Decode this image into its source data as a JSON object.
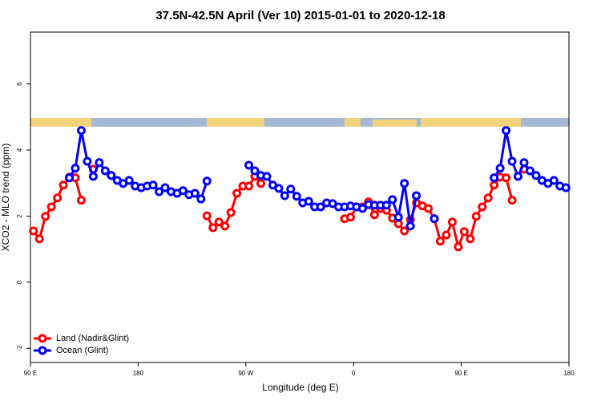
{
  "chart_data": {
    "type": "line",
    "title": "37.5N-42.5N April (Ver 10)   2015-01-01 to 2020-12-18",
    "x_label": "Longitude (deg E)",
    "y_label": "XCO2 - MLO trend (ppm)",
    "x": [
      92.5,
      97.5,
      102.5,
      107.5,
      112.5,
      117.5,
      122.5,
      127.5,
      132.5,
      137.5,
      142.5,
      147.5,
      152.5,
      157.5,
      162.5,
      167.5,
      172.5,
      177.5,
      182.5,
      187.5,
      192.5,
      197.5,
      202.5,
      207.5,
      212.5,
      217.5,
      222.5,
      227.5,
      232.5,
      237.5,
      242.5,
      247.5,
      252.5,
      257.5,
      262.5,
      267.5,
      272.5,
      277.5,
      282.5,
      287.5,
      292.5,
      297.5,
      302.5,
      307.5,
      312.5,
      317.5,
      322.5,
      327.5,
      332.5,
      337.5,
      342.5,
      347.5,
      352.5,
      357.5,
      362.5,
      367.5,
      372.5,
      377.5,
      382.5,
      387.5,
      392.5,
      397.5,
      402.5,
      407.5,
      412.5,
      417.5,
      422.5,
      427.5,
      432.5,
      437.5,
      442.5,
      447.5,
      452.5,
      457.5,
      462.5,
      467.5,
      472.5,
      477.5,
      482.5,
      487.5,
      492.5,
      497.5,
      502.5,
      507.5,
      512.5,
      517.5,
      522.5,
      527.5,
      532.5,
      537.5
    ],
    "series": [
      {
        "name": "Land (Nadir&Glint)",
        "color": "#ff0000",
        "values": [
          1.55,
          1.31,
          1.99,
          2.28,
          2.55,
          2.94,
          3.18,
          3.16,
          2.48,
          null,
          3.42,
          null,
          null,
          null,
          null,
          null,
          null,
          null,
          null,
          null,
          null,
          null,
          null,
          null,
          null,
          null,
          null,
          null,
          null,
          2.01,
          1.65,
          1.82,
          1.7,
          2.11,
          2.69,
          2.91,
          2.91,
          3.2,
          2.99,
          null,
          null,
          null,
          null,
          null,
          null,
          null,
          null,
          null,
          null,
          null,
          null,
          null,
          1.92,
          1.97,
          2.28,
          2.28,
          2.43,
          2.04,
          2.23,
          2.18,
          1.94,
          1.77,
          1.55,
          1.89,
          2.4,
          2.31,
          2.23,
          1.92,
          1.24,
          1.43,
          1.82,
          1.07,
          1.53,
          1.31,
          1.99,
          2.28,
          2.55,
          2.94,
          3.18,
          3.16,
          2.48,
          null,
          3.42,
          null,
          null,
          null,
          null,
          null,
          null,
          null
        ]
      },
      {
        "name": "Ocean (Glint)",
        "color": "#0000ff",
        "values": [
          null,
          null,
          null,
          null,
          null,
          null,
          3.16,
          3.45,
          4.59,
          3.66,
          3.2,
          3.62,
          3.37,
          3.23,
          3.08,
          2.99,
          3.08,
          2.91,
          2.86,
          2.91,
          2.94,
          2.74,
          2.86,
          2.74,
          2.69,
          2.77,
          2.65,
          2.69,
          2.52,
          3.06,
          null,
          null,
          null,
          null,
          null,
          null,
          3.54,
          3.37,
          3.23,
          3.2,
          2.94,
          2.84,
          2.62,
          2.82,
          2.6,
          2.4,
          2.45,
          2.28,
          2.28,
          2.4,
          2.38,
          2.28,
          2.28,
          2.31,
          2.28,
          2.23,
          2.35,
          2.33,
          2.33,
          2.33,
          2.5,
          1.97,
          2.99,
          1.7,
          2.62,
          null,
          null,
          1.92,
          null,
          null,
          null,
          null,
          null,
          null,
          null,
          null,
          null,
          3.16,
          3.45,
          4.59,
          3.66,
          3.2,
          3.62,
          3.37,
          3.23,
          3.08,
          2.99,
          3.08,
          2.91,
          2.86
        ]
      }
    ],
    "xlim": [
      90,
      540
    ],
    "xticks": [
      {
        "value": 90,
        "label": "90 E"
      },
      {
        "value": 180,
        "label": "180"
      },
      {
        "value": 270,
        "label": "90 W"
      },
      {
        "value": 360,
        "label": "0"
      },
      {
        "value": 450,
        "label": "90 E"
      },
      {
        "value": 540,
        "label": "180"
      }
    ],
    "ylim": [
      -2.43,
      7.57
    ],
    "yticks": [
      -2,
      0,
      2,
      4,
      6
    ],
    "legend": "bottom-left"
  }
}
